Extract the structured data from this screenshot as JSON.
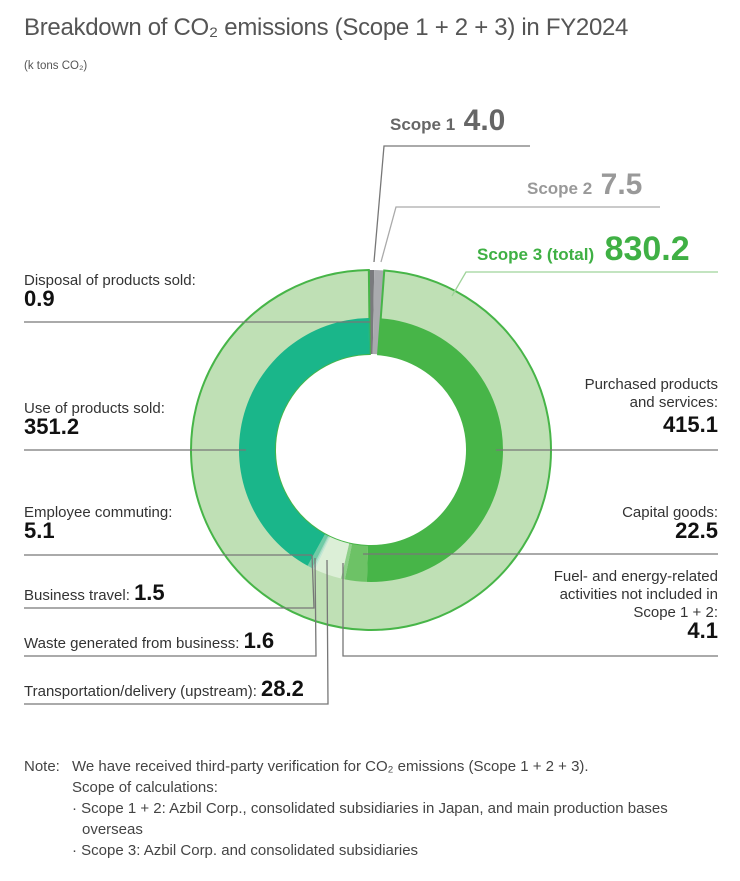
{
  "title": "Breakdown of CO₂ emissions (Scope 1 + 2 + 3) in FY2024",
  "unit": "(k tons CO₂)",
  "colors": {
    "scope1": "#7a7a7e",
    "scope2": "#a9aaae",
    "scope3_outer": "#bfe0b5",
    "scope3_stroke": "#47b548",
    "purchased": "#47b548",
    "capital": "#6dc266",
    "fuel": "#8fd08a",
    "transport": "#dcefd7",
    "waste": "#c4e8d8",
    "travel": "#a6dcc4",
    "commuting": "#6fcba6",
    "use": "#1ab68a",
    "disposal": "#1ab68a"
  },
  "chart_data": {
    "type": "pie",
    "title": "Breakdown of CO₂ emissions (Scope 1 + 2 + 3) in FY2024",
    "unit": "k tons CO₂",
    "outer_ring": [
      {
        "name": "Scope 1",
        "value": 4.0
      },
      {
        "name": "Scope 2",
        "value": 7.5
      },
      {
        "name": "Scope 3 (total)",
        "value": 830.2
      }
    ],
    "inner_ring_scope3": [
      {
        "name": "Purchased products and services",
        "value": 415.1
      },
      {
        "name": "Capital goods",
        "value": 22.5
      },
      {
        "name": "Fuel- and energy-related activities not included in Scope 1 + 2",
        "value": 4.1
      },
      {
        "name": "Transportation/delivery (upstream)",
        "value": 28.2
      },
      {
        "name": "Waste generated from business",
        "value": 1.6
      },
      {
        "name": "Business travel",
        "value": 1.5
      },
      {
        "name": "Employee commuting",
        "value": 5.1
      },
      {
        "name": "Use of products sold",
        "value": 351.2
      },
      {
        "name": "Disposal of products sold",
        "value": 0.9
      }
    ]
  },
  "labels": {
    "scope1": {
      "name": "Scope 1",
      "value": "4.0"
    },
    "scope2": {
      "name": "Scope 2",
      "value": "7.5"
    },
    "scope3": {
      "name": "Scope 3 (total)",
      "value": "830.2"
    },
    "disposal": {
      "name": "Disposal of products sold:",
      "value": "0.9"
    },
    "use": {
      "name": "Use of products sold:",
      "value": "351.2"
    },
    "commuting": {
      "name": "Employee commuting:",
      "value": "5.1"
    },
    "travel": {
      "name": "Business travel:",
      "value": "1.5"
    },
    "waste": {
      "name": "Waste generated from business:",
      "value": "1.6"
    },
    "transport": {
      "name": "Transportation/delivery (upstream):",
      "value": "28.2"
    },
    "purchased": {
      "line1": "Purchased products",
      "line2": "and services:",
      "value": "415.1"
    },
    "capital": {
      "name": "Capital goods:",
      "value": "22.5"
    },
    "fuel": {
      "line1": "Fuel- and energy-related",
      "line2": "activities not included in",
      "line3": "Scope 1 + 2:",
      "value": "4.1"
    }
  },
  "note": {
    "prefix": "Note:",
    "line1": "We have received third-party verification for CO₂ emissions (Scope 1 + 2 + 3).",
    "line2": "Scope of calculations:",
    "bullet1": "· Scope 1 + 2: Azbil Corp., consolidated subsidiaries in Japan, and main production bases overseas",
    "bullet2": "· Scope 3: Azbil Corp. and consolidated subsidiaries"
  }
}
